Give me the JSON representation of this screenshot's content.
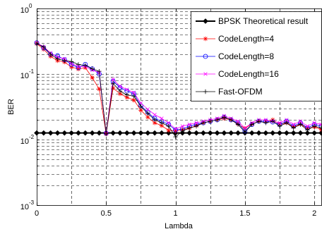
{
  "chart_data": {
    "type": "line",
    "xlabel": "Lambda",
    "ylabel": "BER",
    "xlim": [
      0,
      2.05
    ],
    "ylim": [
      0.001,
      1
    ],
    "yscale": "log",
    "grid": true,
    "minor_grid": true,
    "legend_position": "top-right",
    "xticks": [
      0,
      0.5,
      1,
      1.5,
      2
    ],
    "xtick_labels": [
      "0",
      "0.5",
      "1",
      "1.5",
      "2"
    ],
    "yticks": [
      1,
      0.1,
      0.01,
      0.001
    ],
    "ytick_labels": [
      {
        "base": "10",
        "exp": "0"
      },
      {
        "base": "10",
        "exp": "-1"
      },
      {
        "base": "10",
        "exp": "-2"
      },
      {
        "base": "10",
        "exp": "-3"
      }
    ],
    "x": [
      0,
      0.05,
      0.1,
      0.15,
      0.2,
      0.25,
      0.3,
      0.35,
      0.4,
      0.45,
      0.5,
      0.55,
      0.6,
      0.65,
      0.7,
      0.75,
      0.8,
      0.85,
      0.9,
      0.95,
      1,
      1.05,
      1.1,
      1.15,
      1.2,
      1.25,
      1.3,
      1.35,
      1.4,
      1.45,
      1.5,
      1.55,
      1.6,
      1.65,
      1.7,
      1.75,
      1.8,
      1.85,
      1.9,
      1.95,
      2,
      2.05
    ],
    "series": [
      {
        "name": "BPSK Theoretical result",
        "color": "#000000",
        "marker": "diamond",
        "values": [
          0.0126,
          0.0126,
          0.0126,
          0.0126,
          0.0126,
          0.0126,
          0.0126,
          0.0126,
          0.0126,
          0.0126,
          0.0126,
          0.0126,
          0.0126,
          0.0126,
          0.0126,
          0.0126,
          0.0126,
          0.0126,
          0.0126,
          0.0126,
          0.0126,
          0.0126,
          0.0126,
          0.0126,
          0.0126,
          0.0126,
          0.0126,
          0.0126,
          0.0126,
          0.0126,
          0.0126,
          0.0126,
          0.0126,
          0.0126,
          0.0126,
          0.0126,
          0.0126,
          0.0126,
          0.0126,
          0.0126,
          0.0126,
          0.0126
        ]
      },
      {
        "name": "CodeLength=4",
        "color": "#ff0000",
        "marker": "asterisk",
        "values": [
          0.29,
          0.238,
          0.186,
          0.16,
          0.152,
          0.128,
          0.119,
          0.125,
          0.088,
          0.059,
          0.0122,
          0.061,
          0.05,
          0.044,
          0.04,
          0.028,
          0.022,
          0.018,
          0.0163,
          0.0138,
          0.0135,
          0.0142,
          0.0149,
          0.0163,
          0.018,
          0.019,
          0.02,
          0.021,
          0.02,
          0.0172,
          0.0149,
          0.0172,
          0.019,
          0.019,
          0.02,
          0.0172,
          0.018,
          0.0156,
          0.0172,
          0.0149,
          0.0156,
          0.0142
        ]
      },
      {
        "name": "CodeLength=8",
        "color": "#0000ff",
        "marker": "circle",
        "values": [
          0.3,
          0.25,
          0.2,
          0.19,
          0.165,
          0.14,
          0.125,
          0.14,
          0.12,
          0.1,
          0.0125,
          0.078,
          0.062,
          0.055,
          0.05,
          0.033,
          0.026,
          0.021,
          0.019,
          0.017,
          0.014,
          0.0145,
          0.016,
          0.017,
          0.018,
          0.019,
          0.02,
          0.022,
          0.02,
          0.018,
          0.0135,
          0.017,
          0.019,
          0.019,
          0.0185,
          0.017,
          0.019,
          0.016,
          0.018,
          0.015,
          0.017,
          0.016
        ]
      },
      {
        "name": "CodeLength=16",
        "color": "#ff00ff",
        "marker": "x",
        "values": [
          0.3,
          0.26,
          0.21,
          0.18,
          0.17,
          0.145,
          0.13,
          0.13,
          0.115,
          0.105,
          0.0125,
          0.083,
          0.065,
          0.058,
          0.052,
          0.036,
          0.029,
          0.024,
          0.021,
          0.018,
          0.0145,
          0.016,
          0.017,
          0.018,
          0.019,
          0.02,
          0.021,
          0.023,
          0.021,
          0.019,
          0.015,
          0.018,
          0.02,
          0.02,
          0.019,
          0.018,
          0.02,
          0.017,
          0.019,
          0.016,
          0.018,
          0.017
        ]
      },
      {
        "name": "Fast-OFDM",
        "color": "#000000",
        "marker": "plus",
        "values": [
          0.29,
          0.26,
          0.2,
          0.17,
          0.16,
          0.155,
          0.14,
          0.135,
          0.12,
          0.11,
          0.0122,
          0.072,
          0.055,
          0.048,
          0.046,
          0.032,
          0.025,
          0.02,
          0.018,
          0.016,
          0.011,
          0.0135,
          0.015,
          0.016,
          0.018,
          0.019,
          0.02,
          0.022,
          0.02,
          0.017,
          0.013,
          0.017,
          0.019,
          0.018,
          0.019,
          0.016,
          0.018,
          0.015,
          0.017,
          0.014,
          0.016,
          0.015
        ]
      }
    ]
  }
}
